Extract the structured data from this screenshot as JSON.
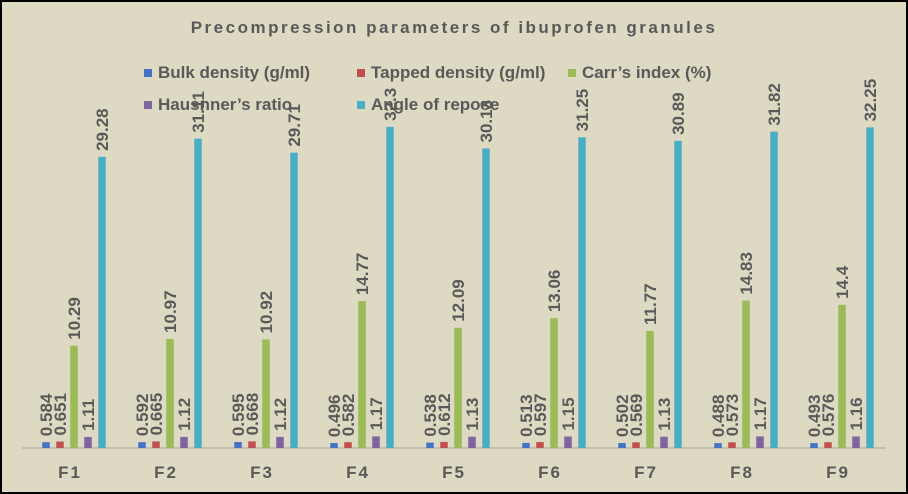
{
  "chart_data": {
    "type": "bar",
    "title": "Precompression parameters of ibuprofen granules",
    "xlabel": "",
    "ylabel": "",
    "categories": [
      "F1",
      "F2",
      "F3",
      "F4",
      "F5",
      "F6",
      "F7",
      "F8",
      "F9"
    ],
    "series": [
      {
        "name": "Bulk density (g/ml)",
        "color": "#4472c4",
        "values": [
          0.584,
          0.592,
          0.595,
          0.496,
          0.538,
          0.513,
          0.502,
          0.488,
          0.493
        ],
        "labels": [
          "0.584",
          "0.592",
          "0.595",
          "0.496",
          "0.538",
          "0.513",
          "0.502",
          "0.488",
          "0.493"
        ]
      },
      {
        "name": "Tapped density (g/ml)",
        "color": "#c0504d",
        "values": [
          0.651,
          0.665,
          0.668,
          0.582,
          0.612,
          0.597,
          0.569,
          0.573,
          0.576
        ],
        "labels": [
          "0.651",
          "0.665",
          "0.668",
          "0.582",
          "0.612",
          "0.597",
          "0.569",
          "0.573",
          "0.576"
        ]
      },
      {
        "name": "Carr's index (%)",
        "color": "#9bbb59",
        "values": [
          10.29,
          10.97,
          10.92,
          14.77,
          12.09,
          13.06,
          11.77,
          14.83,
          14.4
        ],
        "labels": [
          "10.29",
          "10.97",
          "10.92",
          "14.77",
          "12.09",
          "13.06",
          "11.77",
          "14.83",
          "14.4"
        ]
      },
      {
        "name": "Hausnner's ratio",
        "color": "#8064a2",
        "values": [
          1.11,
          1.12,
          1.12,
          1.17,
          1.13,
          1.15,
          1.13,
          1.17,
          1.16
        ],
        "labels": [
          "1.11",
          "1.12",
          "1.12",
          "1.17",
          "1.13",
          "1.15",
          "1.13",
          "1.17",
          "1.16"
        ]
      },
      {
        "name": "Angle of repose",
        "color": "#4bacc6",
        "values": [
          29.28,
          31.11,
          29.71,
          32.3,
          30.13,
          31.25,
          30.89,
          31.82,
          32.25
        ],
        "labels": [
          "29.28",
          "31.11",
          "29.71",
          "32.3",
          "30.13",
          "31.25",
          "30.89",
          "31.82",
          "32.25"
        ]
      }
    ],
    "ylim": [
      0,
      34
    ],
    "grid": false,
    "data_labels": "rotated-vertical",
    "legend_position": "top"
  },
  "legend": {
    "items": [
      {
        "label": "Bulk density (g/ml)",
        "color": "#4472c4"
      },
      {
        "label": "Tapped density (g/ml)",
        "color": "#c0504d"
      },
      {
        "label": "Carr’s index (%)",
        "color": "#9bbb59"
      },
      {
        "label": "Hausnner’s ratio",
        "color": "#8064a2"
      },
      {
        "label": "Angle of repose",
        "color": "#4bacc6"
      }
    ]
  },
  "colors": {
    "background": "#ddd9c3",
    "text": "#595959",
    "axis": "#a6a6a6"
  }
}
